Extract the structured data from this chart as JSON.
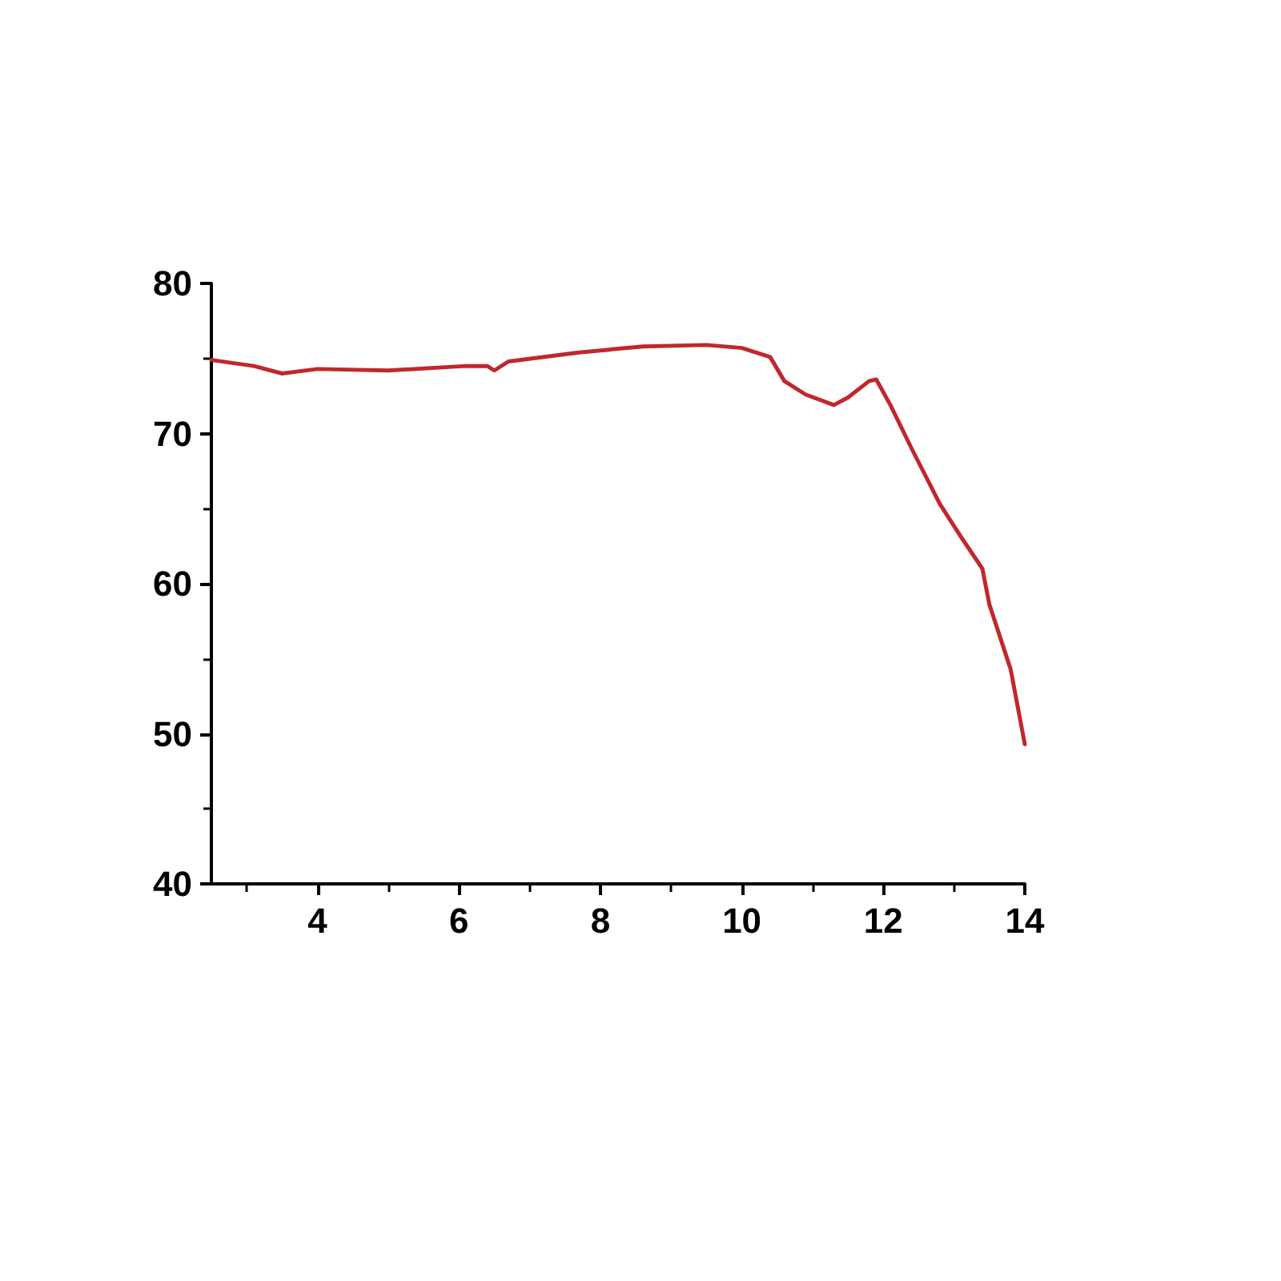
{
  "chart_data": {
    "type": "line",
    "xlim": [
      2.5,
      14
    ],
    "xticks": [
      4,
      6,
      8,
      10,
      12,
      14
    ],
    "ylim": [
      40,
      80
    ],
    "yticks": [
      40,
      50,
      60,
      70,
      80
    ],
    "grid": false,
    "marker": "none",
    "line_style": "solid",
    "series": [
      {
        "color": "#c0282d",
        "x": [
          2.5,
          3.1,
          3.5,
          4.0,
          5.0,
          6.1,
          6.4,
          6.5,
          6.7,
          7.7,
          8.6,
          9.5,
          10.0,
          10.4,
          10.6,
          10.9,
          11.3,
          11.5,
          11.8,
          11.9,
          12.1,
          12.4,
          12.8,
          13.1,
          13.4,
          13.5,
          13.8,
          14.0
        ],
        "values": [
          74.9,
          74.5,
          74.0,
          74.3,
          74.2,
          74.5,
          74.5,
          74.2,
          74.8,
          75.4,
          75.8,
          75.9,
          75.7,
          75.1,
          73.5,
          72.6,
          71.9,
          72.4,
          73.5,
          73.6,
          71.9,
          69.0,
          65.3,
          63.1,
          61.0,
          58.6,
          54.3,
          49.3
        ]
      }
    ]
  }
}
